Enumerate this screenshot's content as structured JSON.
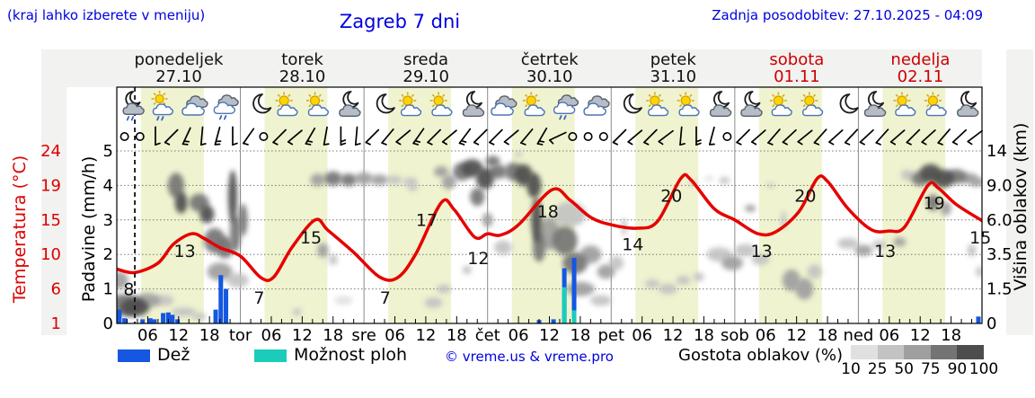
{
  "header": {
    "hint": "(kraj lahko izberete v meniju)",
    "title": "Zagreb 7 dni",
    "updated": "Zadnja posodobitev: 27.10.2025 - 04:09"
  },
  "days": [
    {
      "name": "ponedeljek",
      "date": "27.10",
      "weekend": false
    },
    {
      "name": "torek",
      "date": "28.10",
      "weekend": false
    },
    {
      "name": "sreda",
      "date": "29.10",
      "weekend": false
    },
    {
      "name": "četrtek",
      "date": "30.10",
      "weekend": false
    },
    {
      "name": "petek",
      "date": "31.10",
      "weekend": false
    },
    {
      "name": "sobota",
      "date": "01.11",
      "weekend": true
    },
    {
      "name": "nedelja",
      "date": "02.11",
      "weekend": true
    }
  ],
  "axes": {
    "left_temp": {
      "label": "Temperatura (°C)",
      "ticks": [
        "24",
        "19",
        "15",
        "10",
        "6",
        "1"
      ]
    },
    "left_precip": {
      "label": "Padavine (mm/h)",
      "ticks": [
        "5",
        "4",
        "3",
        "2",
        "1",
        "0"
      ]
    },
    "right_cloud": {
      "label": "Višina oblakov (km)",
      "ticks": [
        "14",
        "9.0",
        "6.0",
        "3.5",
        "1.5",
        "0"
      ]
    },
    "x": {
      "hour_ticks": [
        "06",
        "12",
        "18"
      ],
      "day_ticks": [
        "tor",
        "sre",
        "čet",
        "pet",
        "sob",
        "ned"
      ]
    }
  },
  "legend": {
    "rain": "Dež",
    "shower": "Možnost ploh",
    "copyright": "© vreme.us & vreme.pro",
    "cloud_density": "Gostota oblakov (%)",
    "density_ticks": [
      "10",
      "25",
      "50",
      "75",
      "90",
      "100"
    ]
  },
  "colors": {
    "accent_blue": "#0000e0",
    "temp_red": "#e60000",
    "rain_blue": "#1557e0",
    "shower_cyan": "#1bccbb",
    "weekend_red": "#cc0000",
    "daylight_band": "#eff3cf",
    "cloud_scale": [
      "#e0e0e0",
      "#c3c3c3",
      "#9f9f9f",
      "#747474",
      "#4d4d4d"
    ]
  },
  "chart_data": {
    "type": "meteogram",
    "x_range_hours": [
      0,
      168
    ],
    "daylight_hours": [
      4.7,
      16.9
    ],
    "now_hour": 3.5,
    "temperature": {
      "name": "Temperatura",
      "unit": "°C",
      "axis_ticks": [
        24,
        19,
        15,
        10,
        6,
        1
      ],
      "points": [
        [
          0,
          8.3
        ],
        [
          3.5,
          7.9
        ],
        [
          8,
          9
        ],
        [
          11,
          11.5
        ],
        [
          14.5,
          13
        ],
        [
          17,
          12.3
        ],
        [
          20,
          11
        ],
        [
          24,
          9.8
        ],
        [
          28,
          7.3
        ],
        [
          30.5,
          7.4
        ],
        [
          34,
          11
        ],
        [
          38.5,
          15
        ],
        [
          41,
          13.5
        ],
        [
          46,
          10.3
        ],
        [
          51,
          7.4
        ],
        [
          54.5,
          7.3
        ],
        [
          58,
          10
        ],
        [
          63,
          17
        ],
        [
          65.5,
          16.2
        ],
        [
          69.5,
          12.5
        ],
        [
          72,
          13
        ],
        [
          74.5,
          12.8
        ],
        [
          78,
          14.3
        ],
        [
          84.5,
          18.5
        ],
        [
          88,
          17.3
        ],
        [
          92,
          15.3
        ],
        [
          96,
          14.3
        ],
        [
          101,
          13.8
        ],
        [
          105,
          14.8
        ],
        [
          109.5,
          20
        ],
        [
          111.5,
          19.8
        ],
        [
          116,
          16.3
        ],
        [
          120,
          15
        ],
        [
          124.5,
          13
        ],
        [
          128,
          13.3
        ],
        [
          132.5,
          16
        ],
        [
          136,
          20
        ],
        [
          138,
          19.6
        ],
        [
          142,
          16.3
        ],
        [
          146.5,
          13.6
        ],
        [
          150,
          13.4
        ],
        [
          153,
          14
        ],
        [
          157.5,
          19
        ],
        [
          159.5,
          18.7
        ],
        [
          163,
          16.8
        ],
        [
          168,
          14.9
        ]
      ],
      "labels": [
        {
          "t": 3.2,
          "v": 8,
          "text": "8"
        },
        {
          "t": 13,
          "v": 13,
          "text": "13"
        },
        {
          "t": 28.5,
          "v": 7,
          "text": "7"
        },
        {
          "t": 37.5,
          "v": 15,
          "text": "15"
        },
        {
          "t": 53,
          "v": 7,
          "text": "7"
        },
        {
          "t": 60,
          "v": 17,
          "text": "17"
        },
        {
          "t": 70,
          "v": 12,
          "text": "12"
        },
        {
          "t": 83.5,
          "v": 18,
          "text": "18"
        },
        {
          "t": 100,
          "v": 14,
          "text": "14"
        },
        {
          "t": 107.5,
          "v": 20,
          "text": "20"
        },
        {
          "t": 125,
          "v": 13,
          "text": "13"
        },
        {
          "t": 133.5,
          "v": 20,
          "text": "20"
        },
        {
          "t": 149,
          "v": 13,
          "text": "13"
        },
        {
          "t": 158.5,
          "v": 19,
          "text": "19"
        },
        {
          "t": 167.5,
          "v": 15,
          "text": "15"
        }
      ]
    },
    "rain": {
      "name": "Dež",
      "unit": "mm/h",
      "bars": [
        [
          0.5,
          0.4
        ],
        [
          1.5,
          0.15
        ],
        [
          5,
          0.12
        ],
        [
          6.5,
          0.15
        ],
        [
          7.3,
          0.12
        ],
        [
          9,
          0.3
        ],
        [
          10,
          0.32
        ],
        [
          10.8,
          0.25
        ],
        [
          11.8,
          0.12
        ],
        [
          19.2,
          0.4
        ],
        [
          20.2,
          1.4
        ],
        [
          21.2,
          1.0
        ],
        [
          82,
          0.1
        ],
        [
          84.8,
          0.12
        ],
        [
          86.9,
          1.6
        ],
        [
          88.8,
          1.9
        ],
        [
          167.3,
          0.2
        ]
      ]
    },
    "showers": {
      "name": "Možnost ploh",
      "unit": "mm/h",
      "bars": [
        [
          86.9,
          1.05
        ],
        [
          88.8,
          0.38
        ]
      ]
    },
    "cloud_cover": {
      "name": "Gostota oblakov",
      "density_levels_pct": [
        10,
        25,
        50,
        75,
        90,
        100
      ],
      "height_axis_km": [
        0,
        1.5,
        3.5,
        6.0,
        9.0,
        14
      ],
      "blobs": [
        [
          1.5,
          0.8,
          20,
          12,
          4
        ],
        [
          3.5,
          0.7,
          16,
          10,
          5
        ],
        [
          0.5,
          2,
          10,
          10,
          3
        ],
        [
          6,
          1,
          14,
          8,
          3
        ],
        [
          9,
          1,
          12,
          6,
          2
        ],
        [
          13,
          0.5,
          14,
          5,
          2
        ],
        [
          16,
          0.3,
          8,
          4,
          2
        ],
        [
          11.5,
          9,
          9,
          14,
          4
        ],
        [
          12.5,
          7.5,
          7,
          12,
          5
        ],
        [
          16,
          7.5,
          11,
          10,
          4
        ],
        [
          17.5,
          6.5,
          8,
          10,
          5
        ],
        [
          19,
          4.5,
          12,
          14,
          4
        ],
        [
          21,
          4,
          10,
          12,
          4
        ],
        [
          22.5,
          8,
          5,
          30,
          5
        ],
        [
          23,
          5,
          6,
          20,
          4
        ],
        [
          24.5,
          6,
          5,
          18,
          4
        ],
        [
          20,
          2.5,
          14,
          10,
          3
        ],
        [
          23.5,
          2,
          12,
          8,
          2
        ],
        [
          35,
          0.5,
          5,
          4,
          2
        ],
        [
          39,
          9.8,
          8,
          7,
          3
        ],
        [
          42,
          10,
          10,
          8,
          4
        ],
        [
          45,
          9.8,
          9,
          7,
          4
        ],
        [
          48,
          10,
          10,
          7,
          3
        ],
        [
          51,
          9.8,
          10,
          6,
          3
        ],
        [
          54,
          9.8,
          8,
          5,
          2
        ],
        [
          57,
          9.5,
          8,
          5,
          2
        ],
        [
          40,
          3.8,
          6,
          8,
          3
        ],
        [
          42,
          3.2,
          5,
          6,
          2
        ],
        [
          44,
          1,
          10,
          5,
          1
        ],
        [
          57.5,
          8.8,
          5,
          4,
          2
        ],
        [
          61.5,
          0.9,
          10,
          6,
          2
        ],
        [
          63.5,
          1.5,
          8,
          5,
          2
        ],
        [
          68,
          2.6,
          5,
          5,
          2
        ],
        [
          63,
          11,
          8,
          6,
          3
        ],
        [
          64.5,
          9.5,
          8,
          8,
          3
        ],
        [
          67,
          11,
          10,
          10,
          4
        ],
        [
          69,
          11.5,
          12,
          10,
          5
        ],
        [
          71.5,
          10,
          10,
          12,
          5
        ],
        [
          74,
          11,
          10,
          8,
          4
        ],
        [
          70,
          8,
          8,
          10,
          4
        ],
        [
          73,
          12.5,
          8,
          6,
          4
        ],
        [
          72,
          6,
          6,
          8,
          3
        ],
        [
          75,
          4,
          10,
          8,
          2
        ],
        [
          77,
          11,
          10,
          10,
          4
        ],
        [
          79,
          10.5,
          10,
          12,
          5
        ],
        [
          81,
          9,
          8,
          14,
          5
        ],
        [
          81.5,
          6,
          6,
          25,
          5
        ],
        [
          82,
          4,
          7,
          16,
          4
        ],
        [
          78,
          13.5,
          4,
          3,
          2
        ],
        [
          84,
          5,
          12,
          18,
          3
        ],
        [
          87,
          4.5,
          14,
          16,
          4
        ],
        [
          89,
          3,
          14,
          12,
          4
        ],
        [
          92,
          3.5,
          12,
          10,
          3
        ],
        [
          95,
          2.5,
          10,
          8,
          3
        ],
        [
          90,
          1.5,
          16,
          8,
          3
        ],
        [
          97,
          3,
          8,
          8,
          2
        ],
        [
          88,
          6.5,
          18,
          14,
          2
        ],
        [
          94,
          1,
          12,
          6,
          2
        ],
        [
          98.5,
          5.5,
          3,
          10,
          2
        ],
        [
          104,
          1.8,
          8,
          5,
          2
        ],
        [
          107,
          1.5,
          10,
          6,
          2
        ],
        [
          110,
          2,
          8,
          5,
          2
        ],
        [
          113,
          2.2,
          6,
          5,
          2
        ],
        [
          112,
          9.3,
          4,
          3,
          2
        ],
        [
          115,
          10,
          5,
          3,
          1
        ],
        [
          118,
          9.7,
          6,
          4,
          2
        ],
        [
          117,
          3.5,
          14,
          8,
          2
        ],
        [
          119.5,
          3,
          12,
          8,
          3
        ],
        [
          122,
          3.8,
          12,
          7,
          2
        ],
        [
          125,
          3.2,
          10,
          6,
          2
        ],
        [
          123,
          7,
          6,
          4,
          3
        ],
        [
          127,
          9,
          4,
          3,
          2
        ],
        [
          129.5,
          6,
          3,
          10,
          2
        ],
        [
          131,
          2,
          10,
          12,
          3
        ],
        [
          133.5,
          1.5,
          10,
          12,
          3
        ],
        [
          135.5,
          2.5,
          8,
          8,
          2
        ],
        [
          142,
          4.3,
          12,
          6,
          2
        ],
        [
          145,
          3.8,
          10,
          6,
          3
        ],
        [
          148,
          4.2,
          8,
          5,
          2
        ],
        [
          152,
          4.4,
          7,
          5,
          3
        ],
        [
          153.5,
          10.5,
          7,
          6,
          2
        ],
        [
          156,
          10,
          10,
          8,
          4
        ],
        [
          158,
          10.8,
          12,
          10,
          5
        ],
        [
          160.5,
          10,
          12,
          10,
          5
        ],
        [
          163,
          10.3,
          12,
          8,
          4
        ],
        [
          165.5,
          10,
          10,
          6,
          3
        ],
        [
          167,
          9.5,
          8,
          5,
          3
        ],
        [
          158.5,
          7.5,
          7,
          9,
          4
        ],
        [
          161,
          7,
          6,
          8,
          3
        ],
        [
          166,
          3.8,
          5,
          7,
          2
        ],
        [
          167.5,
          2.5,
          4,
          6,
          2
        ]
      ]
    },
    "wind": {
      "symbols": [
        [
          "c"
        ],
        [
          "c"
        ],
        [
          "b",
          -45,
          1
        ],
        [
          "b",
          0,
          1
        ],
        [
          "b",
          -20,
          2
        ],
        [
          "b",
          -40,
          1
        ],
        [
          "b",
          -30,
          2
        ],
        [
          "b",
          -45,
          1
        ],
        [
          "b",
          -10,
          1
        ],
        [
          "c"
        ],
        [
          "b",
          0,
          1
        ],
        [
          "b",
          5,
          1
        ],
        [
          "b",
          -15,
          2
        ],
        [
          "b",
          -35,
          1
        ],
        [
          "b",
          -45,
          2
        ],
        [
          "b",
          -40,
          1
        ],
        [
          "b",
          0,
          1
        ],
        [
          "b",
          -5,
          1
        ],
        [
          "b",
          5,
          1
        ],
        [
          "b",
          -10,
          2
        ],
        [
          "b",
          0,
          1
        ],
        [
          "b",
          5,
          1
        ],
        [
          "b",
          -8,
          2
        ],
        [
          "b",
          0,
          1
        ],
        [
          "b",
          0,
          1
        ],
        [
          "b",
          5,
          1
        ],
        [
          "b",
          -5,
          1
        ],
        [
          "b",
          -15,
          2
        ],
        [
          "b",
          20,
          1
        ],
        [
          "c"
        ],
        [
          "c"
        ],
        [
          "c"
        ],
        [
          "b",
          0,
          1
        ],
        [
          "b",
          5,
          1
        ],
        [
          "b",
          0,
          1
        ],
        [
          "b",
          8,
          1
        ],
        [
          "b",
          -40,
          1
        ],
        [
          "b",
          -45,
          2
        ],
        [
          "b",
          -30,
          1
        ],
        [
          "c"
        ],
        [
          "b",
          0,
          1
        ],
        [
          "b",
          4,
          1
        ],
        [
          "b",
          -4,
          1
        ],
        [
          "b",
          2,
          1
        ],
        [
          "b",
          6,
          1
        ],
        [
          "b",
          -3,
          1
        ],
        [
          "b",
          3,
          1
        ],
        [
          "b",
          -2,
          1
        ],
        [
          "b",
          2,
          1
        ],
        [
          "b",
          -3,
          1
        ],
        [
          "b",
          4,
          1
        ],
        [
          "b",
          0,
          1
        ],
        [
          "b",
          3,
          1
        ],
        [
          "b",
          -4,
          1
        ],
        [
          "b",
          2,
          1
        ],
        [
          "b",
          8,
          1
        ]
      ]
    },
    "weather_icons": [
      "moon-cloud-rain",
      "sun-cloud-rain",
      "clouds",
      "cloud-rain",
      "moon",
      "sun-cloud",
      "sun-cloud",
      "moon-cloud",
      "moon",
      "sun-cloud",
      "sun-cloud",
      "moon-cloud",
      "clouds",
      "sun-cloud",
      "cloud-rain",
      "clouds",
      "moon",
      "sun-cloud",
      "sun-cloud",
      "moon-cloud",
      "moon-cloud",
      "sun-cloud",
      "sun-cloud",
      "moon",
      "moon-cloud",
      "sun-cloud",
      "sun-cloud",
      "moon-cloud"
    ]
  }
}
